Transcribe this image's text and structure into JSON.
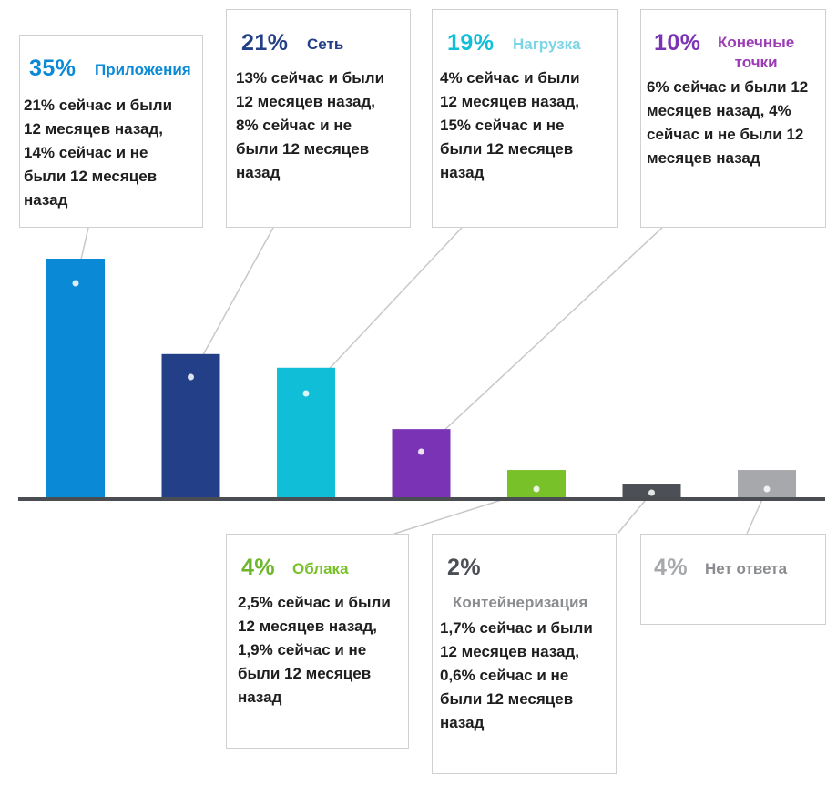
{
  "chart_data": {
    "type": "bar",
    "categories": [
      "Приложения",
      "Сеть",
      "Нагрузка",
      "Конечные точки",
      "Облака",
      "Контейнеризация",
      "Нет ответа"
    ],
    "values": [
      35,
      21,
      19,
      10,
      4,
      2,
      4
    ],
    "colors": [
      "#0a8ad6",
      "#233f87",
      "#10bfd7",
      "#7b33b6",
      "#79c128",
      "#4c4f55",
      "#a6a8ab"
    ],
    "ylim": [
      0,
      35
    ],
    "grid": false,
    "callouts": [
      {
        "percent": "35%",
        "label": "Приложения",
        "pct_color": "#0a8ad6",
        "label_color": "#0a8ad6",
        "desc_lines": [
          "21% сейчас и были",
          "12 месяцев назад,",
          "14% сейчас и не",
          "были 12 месяцев",
          "назад"
        ]
      },
      {
        "percent": "21%",
        "label": "Сеть",
        "pct_color": "#233f87",
        "label_color": "#233f87",
        "desc_lines": [
          "13% сейчас и были",
          "12 месяцев назад,",
          "8% сейчас и не",
          "были 12 месяцев",
          "назад"
        ]
      },
      {
        "percent": "19%",
        "label": "Нагрузка",
        "pct_color": "#10bfd7",
        "label_color": "#7ad5e6",
        "desc_lines": [
          "4% сейчас и были",
          "12 месяцев назад,",
          "15% сейчас и не",
          "были 12 месяцев",
          "назад"
        ]
      },
      {
        "percent": "10%",
        "label": "Конечные точки",
        "label_lines": [
          "Конечные",
          "точки"
        ],
        "pct_color": "#7b33b6",
        "label_color": "#9b3bb5",
        "desc_lines": [
          "6% сейчас и были 12",
          "месяцев назад, 4%",
          "сейчас и не были 12",
          "месяцев назад"
        ]
      },
      {
        "percent": "4%",
        "label": "Облака",
        "pct_color": "#6db52a",
        "label_color": "#79c128",
        "desc_lines": [
          "2,5% сейчас и были",
          "12 месяцев назад,",
          "1,9% сейчас и не",
          "были 12 месяцев",
          "назад"
        ]
      },
      {
        "percent": "2%",
        "label": "Контейнеризация",
        "pct_color": "#4c4f55",
        "label_color": "#8a8c90",
        "desc_lines": [
          "1,7% сейчас и были",
          "12 месяцев назад,",
          "0,6% сейчас и не",
          "были 12 месяцев",
          "назад"
        ]
      },
      {
        "percent": "4%",
        "label": "Нет ответа",
        "pct_color": "#a6a8ab",
        "label_color": "#8a8c90",
        "desc_lines": []
      }
    ]
  }
}
